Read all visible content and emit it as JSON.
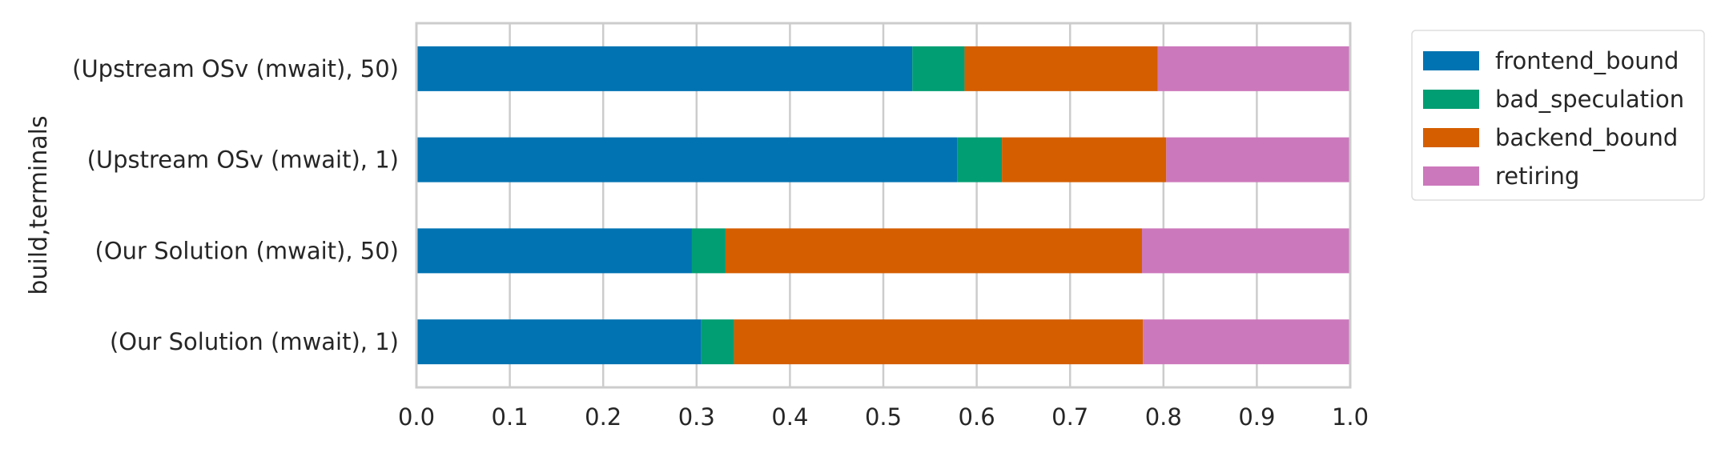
{
  "chart_data": {
    "type": "bar",
    "orientation": "horizontal",
    "stacked": true,
    "title": "",
    "xlabel": "",
    "ylabel": "build,terminals",
    "xlim": [
      0.0,
      1.0
    ],
    "xticks": [
      "0.0",
      "0.1",
      "0.2",
      "0.3",
      "0.4",
      "0.5",
      "0.6",
      "0.7",
      "0.8",
      "0.9",
      "1.0"
    ],
    "grid": "vertical",
    "legend_position": "outside-right",
    "categories": [
      "(Upstream OSv (mwait), 50)",
      "(Upstream OSv (mwait), 1)",
      "(Our Solution (mwait), 50)",
      "(Our Solution (mwait), 1)"
    ],
    "series": [
      {
        "name": "frontend_bound",
        "color": "#0173b2",
        "values": [
          0.531,
          0.579,
          0.295,
          0.305
        ]
      },
      {
        "name": "bad_speculation",
        "color": "#029e73",
        "values": [
          0.056,
          0.048,
          0.036,
          0.035
        ]
      },
      {
        "name": "backend_bound",
        "color": "#d55e00",
        "values": [
          0.207,
          0.176,
          0.446,
          0.438
        ]
      },
      {
        "name": "retiring",
        "color": "#cc78bc",
        "values": [
          0.206,
          0.197,
          0.223,
          0.222
        ]
      }
    ]
  }
}
